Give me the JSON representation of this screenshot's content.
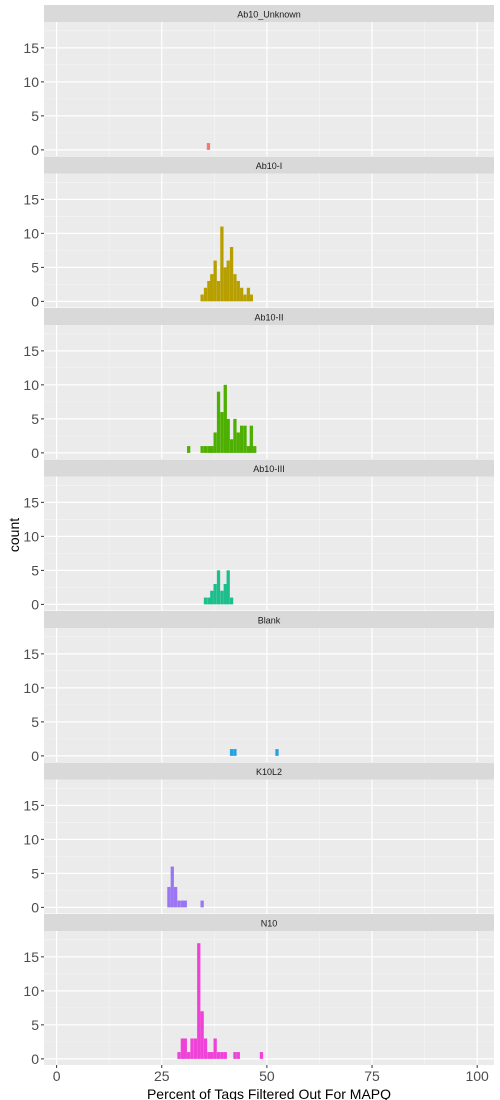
{
  "chart_data": {
    "type": "bar",
    "subtype": "faceted-histogram",
    "title": "",
    "xlabel": "Percent of Tags Filtered Out For MAPQ",
    "ylabel": "count",
    "xlim": [
      -3,
      104
    ],
    "ylim": [
      -0.9,
      18.8
    ],
    "x_ticks": [
      0,
      25,
      50,
      75,
      100
    ],
    "x_tick_labels": [
      "0",
      "25",
      "50",
      "75",
      "100"
    ],
    "y_ticks": [
      0,
      5,
      10,
      15
    ],
    "y_tick_labels": [
      "0",
      "5",
      "10",
      "15"
    ],
    "bin_width": 0.78,
    "grid": true,
    "legend": "none",
    "panel_background": "#EBEBEB",
    "strip_background": "#D9D9D9",
    "facets": [
      {
        "name": "Ab10_Unknown",
        "color": "#F8766D",
        "bins": [
          [
            36.1,
            1
          ]
        ]
      },
      {
        "name": "Ab10-I",
        "color": "#B79F00",
        "bins": [
          [
            34.6,
            1
          ],
          [
            35.4,
            2
          ],
          [
            36.2,
            3
          ],
          [
            36.9,
            4
          ],
          [
            37.7,
            6
          ],
          [
            38.5,
            3
          ],
          [
            39.3,
            11
          ],
          [
            40.1,
            5
          ],
          [
            40.8,
            6
          ],
          [
            41.6,
            8
          ],
          [
            42.4,
            4
          ],
          [
            43.2,
            3
          ],
          [
            44.0,
            2
          ],
          [
            44.8,
            1
          ],
          [
            45.6,
            2
          ],
          [
            46.3,
            1
          ]
        ]
      },
      {
        "name": "Ab10-II",
        "color": "#4DAF00",
        "bins": [
          [
            31.4,
            1
          ],
          [
            34.6,
            1
          ],
          [
            35.4,
            1
          ],
          [
            36.2,
            1
          ],
          [
            36.9,
            1
          ],
          [
            37.7,
            3
          ],
          [
            38.5,
            9
          ],
          [
            39.3,
            6
          ],
          [
            40.1,
            10
          ],
          [
            40.8,
            5
          ],
          [
            41.6,
            2
          ],
          [
            42.4,
            5
          ],
          [
            43.2,
            3
          ],
          [
            44.0,
            4
          ],
          [
            44.8,
            4
          ],
          [
            45.6,
            1
          ],
          [
            46.3,
            4
          ],
          [
            47.1,
            1
          ]
        ]
      },
      {
        "name": "Ab10-III",
        "color": "#1DBE8C",
        "bins": [
          [
            35.4,
            1
          ],
          [
            36.2,
            1
          ],
          [
            36.9,
            2
          ],
          [
            37.7,
            3
          ],
          [
            38.5,
            5
          ],
          [
            39.3,
            2
          ],
          [
            40.1,
            3
          ],
          [
            40.8,
            5
          ],
          [
            41.6,
            1
          ]
        ]
      },
      {
        "name": "Blank",
        "color": "#26A0E0",
        "bins": [
          [
            41.6,
            1
          ],
          [
            42.4,
            1
          ],
          [
            52.4,
            1
          ]
        ]
      },
      {
        "name": "K10L2",
        "color": "#9B76F2",
        "bins": [
          [
            26.7,
            3
          ],
          [
            27.5,
            6
          ],
          [
            28.3,
            3
          ],
          [
            29.1,
            1
          ],
          [
            29.9,
            1
          ],
          [
            30.6,
            1
          ],
          [
            34.6,
            1
          ]
        ]
      },
      {
        "name": "N10",
        "color": "#EF42D8",
        "bins": [
          [
            29.1,
            1
          ],
          [
            29.9,
            3
          ],
          [
            30.6,
            3
          ],
          [
            31.4,
            1
          ],
          [
            32.2,
            3
          ],
          [
            33.0,
            3
          ],
          [
            33.8,
            17
          ],
          [
            34.6,
            7
          ],
          [
            35.4,
            3
          ],
          [
            36.2,
            1
          ],
          [
            36.9,
            1
          ],
          [
            37.7,
            3
          ],
          [
            38.5,
            1
          ],
          [
            39.3,
            1
          ],
          [
            40.1,
            1
          ],
          [
            42.4,
            1
          ],
          [
            43.2,
            1
          ],
          [
            48.7,
            1
          ]
        ]
      }
    ]
  }
}
